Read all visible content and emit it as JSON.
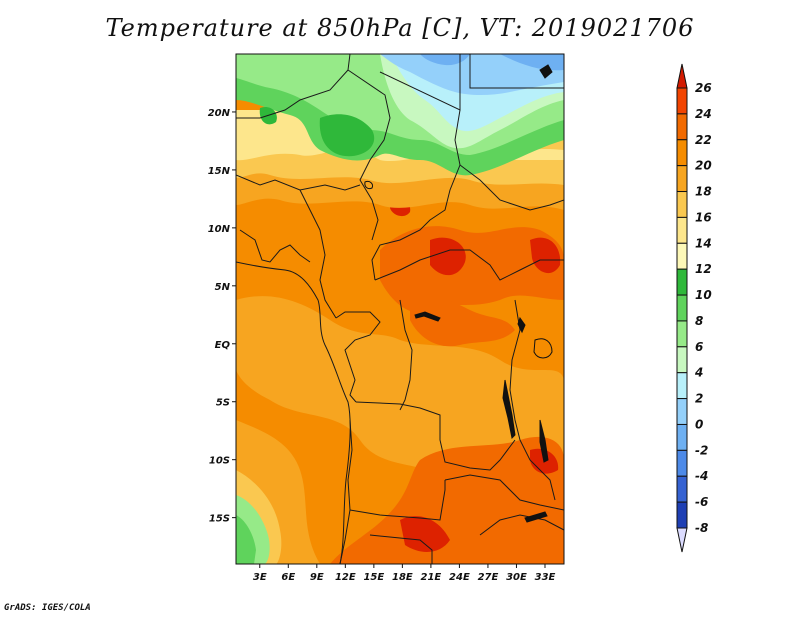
{
  "title": "Temperature at 850hPa [C], VT: 2019021706",
  "credit": "GrADS: IGES/COLA",
  "map": {
    "lat_labels": [
      "20N",
      "15N",
      "10N",
      "5N",
      "EQ",
      "5S",
      "10S",
      "15S"
    ],
    "lon_labels": [
      "3E",
      "6E",
      "9E",
      "12E",
      "15E",
      "18E",
      "21E",
      "24E",
      "27E",
      "30E",
      "33E"
    ],
    "lat_range": [
      -19,
      25
    ],
    "lon_range": [
      0.5,
      35
    ]
  },
  "colorbar": {
    "labels": [
      "26",
      "24",
      "22",
      "20",
      "18",
      "16",
      "14",
      "12",
      "10",
      "8",
      "6",
      "4",
      "2",
      "0",
      "-2",
      "-4",
      "-6",
      "-8"
    ],
    "colors": [
      "#dd2200",
      "#f24400",
      "#f26a00",
      "#f58c00",
      "#f7a520",
      "#fac850",
      "#fde68c",
      "#fdf8b8",
      "#2fb83a",
      "#5fd35c",
      "#96ea88",
      "#c8f8c0",
      "#b8f0fa",
      "#94d0fa",
      "#6eb0f2",
      "#4d8ae8",
      "#3562d2",
      "#1e3fb4",
      "#102a8a",
      "#08124e"
    ],
    "top_arrow_color": "#d21a00",
    "bottom_arrow_color": "#dcdcff"
  }
}
